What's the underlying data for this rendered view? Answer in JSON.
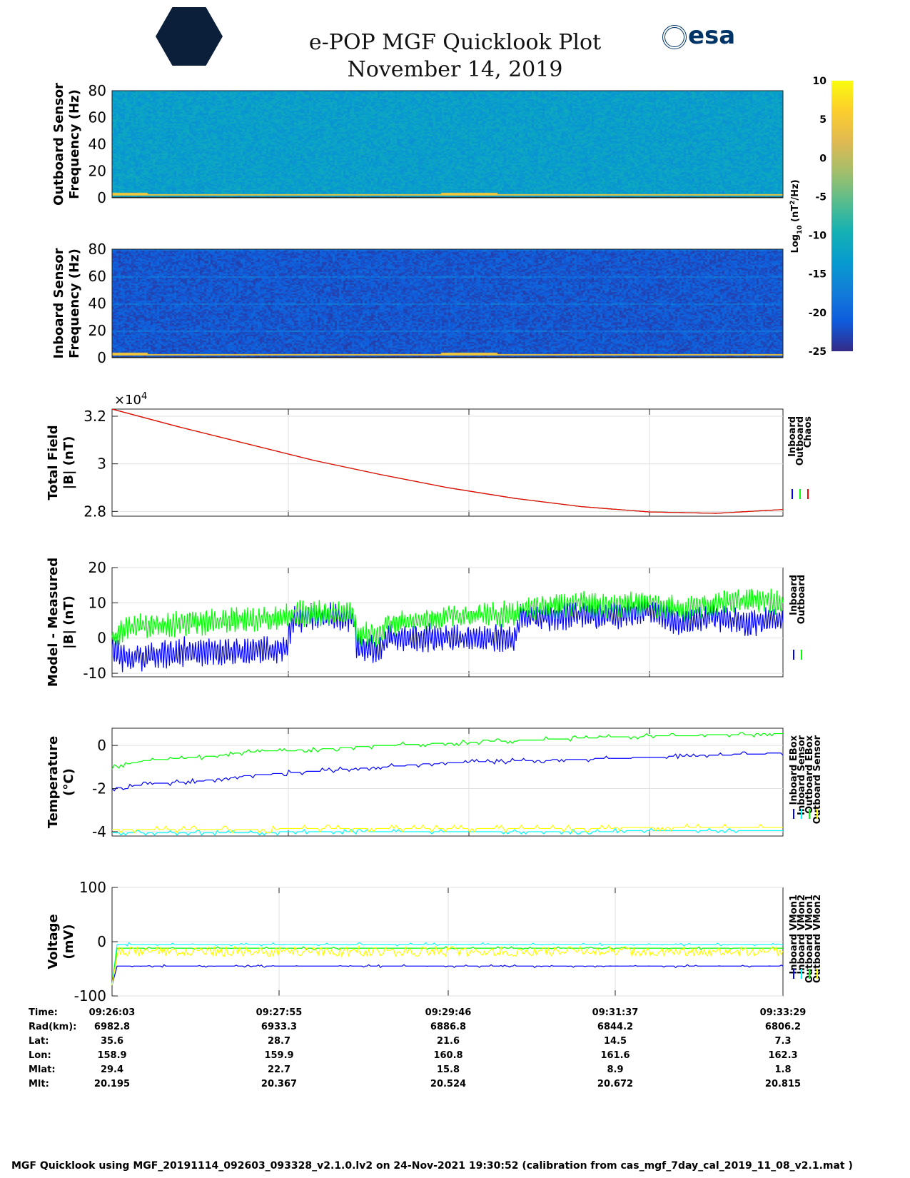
{
  "header": {
    "title": "e-POP MGF Quicklook Plot",
    "date": "November 14, 2019",
    "logo_left": "CASSIOPE",
    "logo_right": "esa"
  },
  "colors": {
    "blue": "#0000ff",
    "green": "#00ff00",
    "red": "#ff0000",
    "cyan": "#00ffff",
    "yellow": "#ffff00"
  },
  "chart_data": [
    {
      "type": "heatmap",
      "name": "outboard",
      "ylabel": [
        "Outboard Sensor",
        "Frequency (Hz)"
      ],
      "ylim": [
        0,
        80
      ],
      "yticks": [
        "0",
        "20",
        "40",
        "60",
        "80"
      ]
    },
    {
      "type": "heatmap",
      "name": "inboard",
      "ylabel": [
        "Inboard Sensor",
        "Frequency (Hz)"
      ],
      "ylim": [
        0,
        80
      ],
      "yticks": [
        "0",
        "20",
        "40",
        "60",
        "80"
      ]
    },
    {
      "type": "colorbar",
      "label": "Log10 (nT2/Hz)",
      "label_parts": [
        "Log",
        "10",
        " (nT",
        "2",
        "/Hz)"
      ],
      "range": [
        -25,
        10
      ],
      "ticks": [
        "10",
        "5",
        "0",
        "-5",
        "-10",
        "-15",
        "-20",
        "-25"
      ]
    },
    {
      "type": "line",
      "name": "total",
      "ylabel": [
        "Total Field",
        "|B| (nT)"
      ],
      "exponent": "×10",
      "exponent_pow": "4",
      "ylim": [
        27800,
        32300
      ],
      "yticks": [
        "2.8",
        "3",
        "3.2"
      ],
      "ytick_values": [
        28000,
        30000,
        32000
      ],
      "series": [
        {
          "name": "Inboard",
          "color": "#0000ff"
        },
        {
          "name": "Outboard",
          "color": "#00ff00"
        },
        {
          "name": "Chaos",
          "color": "#ff0000"
        }
      ],
      "x": [
        0,
        0.1,
        0.2,
        0.3,
        0.4,
        0.5,
        0.6,
        0.7,
        0.8,
        0.9,
        1.0
      ],
      "values": [
        32300,
        31550,
        30850,
        30150,
        29550,
        29000,
        28550,
        28200,
        27980,
        27920,
        28080
      ]
    },
    {
      "type": "line",
      "name": "residual",
      "ylabel": [
        "Model - Measured",
        "|B| (nT)"
      ],
      "ylim": [
        -11,
        20
      ],
      "yticks": [
        "-10",
        "0",
        "10",
        "20"
      ],
      "ytick_values": [
        -10,
        0,
        10,
        20
      ],
      "series": [
        {
          "name": "Inboard",
          "color": "#0000ff",
          "x": [
            0,
            0.02,
            0.1,
            0.18,
            0.26,
            0.27,
            0.36,
            0.365,
            0.4,
            0.41,
            0.5,
            0.6,
            0.61,
            0.65,
            0.7,
            0.73,
            0.8,
            0.85,
            0.9,
            0.95,
            1.0
          ],
          "y": [
            -3,
            -6,
            -4,
            -4,
            -3,
            6,
            6,
            -3,
            -3,
            0,
            0,
            0,
            6,
            6,
            7,
            6,
            8,
            4,
            6,
            4,
            6
          ]
        },
        {
          "name": "Outboard",
          "color": "#00ff00",
          "x": [
            0,
            0.02,
            0.1,
            0.18,
            0.26,
            0.27,
            0.36,
            0.365,
            0.4,
            0.41,
            0.5,
            0.6,
            0.61,
            0.65,
            0.7,
            0.73,
            0.8,
            0.85,
            0.9,
            0.95,
            1.0
          ],
          "y": [
            0,
            3,
            4,
            5,
            6,
            7,
            7,
            1,
            1,
            4,
            6,
            7,
            8,
            9,
            10,
            9,
            10,
            8,
            10,
            11,
            10
          ]
        }
      ]
    },
    {
      "type": "line",
      "name": "temperature",
      "ylabel": [
        "Temperature",
        "(°C)"
      ],
      "ylim": [
        -4.2,
        0.8
      ],
      "yticks": [
        "-4",
        "-2",
        "0"
      ],
      "ytick_values": [
        -4,
        -2,
        0
      ],
      "series": [
        {
          "name": "Inboard EBox",
          "color": "#0000ff",
          "x": [
            0,
            0.05,
            0.15,
            0.2,
            0.3,
            0.4,
            0.5,
            0.75,
            1.0
          ],
          "y": [
            -2.0,
            -1.8,
            -1.6,
            -1.4,
            -1.2,
            -1.0,
            -0.8,
            -0.6,
            -0.35
          ]
        },
        {
          "name": "Inboard Sensor",
          "color": "#00ffff",
          "x": [
            0,
            1
          ],
          "y": [
            -4.05,
            -3.95
          ]
        },
        {
          "name": "Outboard EBox",
          "color": "#00ff00",
          "x": [
            0,
            0.05,
            0.15,
            0.2,
            0.3,
            0.4,
            0.5,
            0.75,
            1.0
          ],
          "y": [
            -1.0,
            -0.7,
            -0.5,
            -0.3,
            -0.2,
            0,
            0.1,
            0.4,
            0.55
          ]
        },
        {
          "name": "Outboard Sensor",
          "color": "#ffff00",
          "x": [
            0,
            1
          ],
          "y": [
            -3.9,
            -3.8
          ]
        }
      ]
    },
    {
      "type": "line",
      "name": "voltage",
      "ylabel": [
        "Voltage",
        "(mV)"
      ],
      "ylim": [
        -100,
        100
      ],
      "yticks": [
        "-100",
        "0",
        "100"
      ],
      "ytick_values": [
        -100,
        0,
        100
      ],
      "series": [
        {
          "name": "Inboard VMon1",
          "color": "#0000ff",
          "y_level": -45
        },
        {
          "name": "Inboard VMon2",
          "color": "#00ffff",
          "y_level": -5
        },
        {
          "name": "Outboard VMon1",
          "color": "#00ff00",
          "y_level": -12
        },
        {
          "name": "Outboard VMon2",
          "color": "#ffff00",
          "y_level": -18
        }
      ]
    }
  ],
  "ephemeris": {
    "labels": [
      "Time:",
      "Rad(km):",
      "Lat:",
      "Lon:",
      "Mlat:",
      "Mlt:"
    ],
    "columns": [
      [
        "09:26:03",
        "6982.8",
        "35.6",
        "158.9",
        "29.4",
        "20.195"
      ],
      [
        "09:27:55",
        "6933.3",
        "28.7",
        "159.9",
        "22.7",
        "20.367"
      ],
      [
        "09:29:46",
        "6886.8",
        "21.6",
        "160.8",
        "15.8",
        "20.524"
      ],
      [
        "09:31:37",
        "6844.2",
        "14.5",
        "161.6",
        "8.9",
        "20.672"
      ],
      [
        "09:33:29",
        "6806.2",
        "7.3",
        "162.3",
        "1.8",
        "20.815"
      ]
    ]
  },
  "footer": "MGF Quicklook using MGF_20191114_092603_093328_v2.1.0.lv2 on 24-Nov-2021 19:30:52 (calibration from cas_mgf_7day_cal_2019_11_08_v2.1.mat )"
}
